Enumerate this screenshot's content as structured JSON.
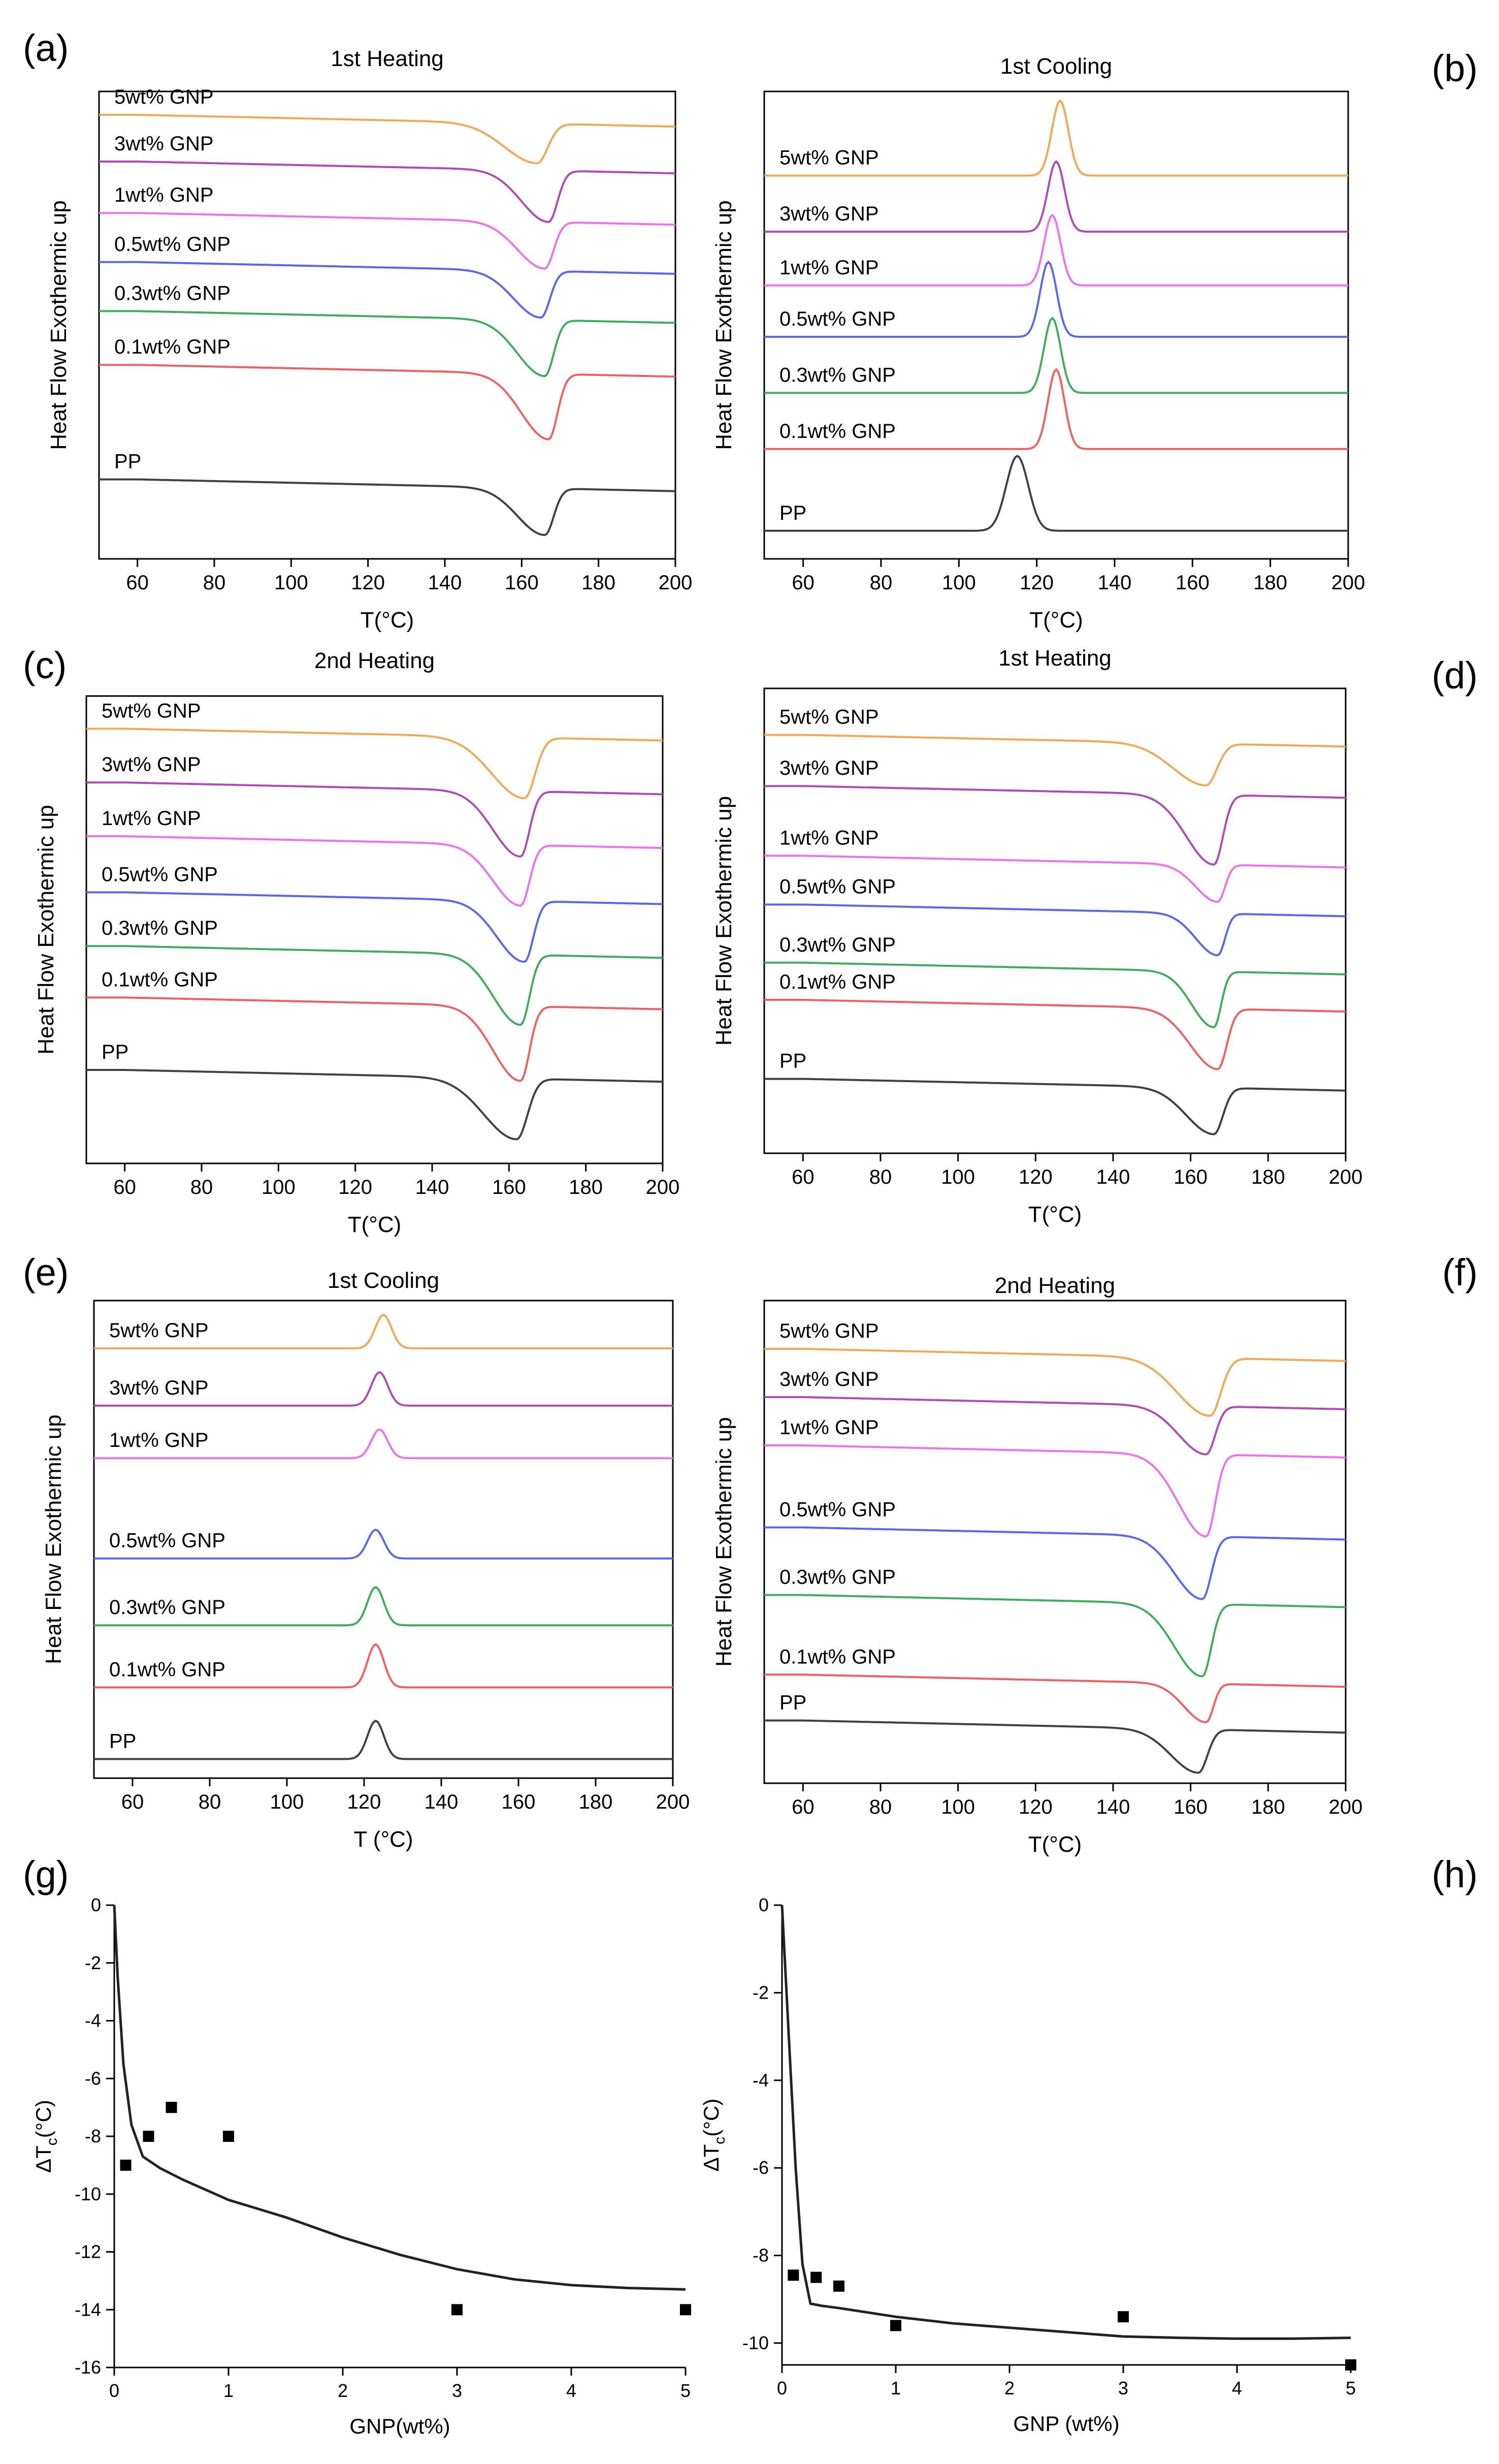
{
  "colors": {
    "PP": "#404040",
    "0.1wt% GNP": "#f06060",
    "0.3wt% GNP": "#3daf5a",
    "0.5wt% GNP": "#5a66ee",
    "1wt% GNP": "#f070f0",
    "3wt% GNP": "#b04ab6",
    "5wt% GNP": "#f5a854",
    "fit": "#222222",
    "axis": "#000000"
  },
  "chart_data": [
    {
      "id": "a",
      "panel_label": "(a)",
      "type": "line",
      "title": "1st Heating",
      "xlabel": "T(°C)",
      "ylabel": "Heat Flow Exothermic up",
      "xlim": [
        50,
        200
      ],
      "xticks": [
        "60",
        "80",
        "100",
        "120",
        "140",
        "160",
        "180",
        "200"
      ],
      "peak": "endo",
      "series": [
        {
          "name": "5wt% GNP",
          "label": "5wt% GNP",
          "baseline": 0.95,
          "peak_T": 164,
          "depth": 0.085,
          "width": 6
        },
        {
          "name": "3wt% GNP",
          "label": "3wt% GNP",
          "baseline": 0.85,
          "peak_T": 167,
          "depth": 0.11,
          "width": 5
        },
        {
          "name": "1wt% GNP",
          "label": "1wt% GNP",
          "baseline": 0.74,
          "peak_T": 166,
          "depth": 0.1,
          "width": 5
        },
        {
          "name": "0.5wt% GNP",
          "label": "0.5wt% GNP",
          "baseline": 0.635,
          "peak_T": 165,
          "depth": 0.1,
          "width": 5
        },
        {
          "name": "0.3wt% GNP",
          "label": "0.3wt% GNP",
          "baseline": 0.53,
          "peak_T": 166,
          "depth": 0.12,
          "width": 5
        },
        {
          "name": "0.1wt% GNP",
          "label": "0.1wt% GNP",
          "baseline": 0.415,
          "peak_T": 167,
          "depth": 0.14,
          "width": 5
        },
        {
          "name": "PP",
          "label": "PP",
          "baseline": 0.17,
          "peak_T": 166,
          "depth": 0.1,
          "width": 5
        }
      ]
    },
    {
      "id": "b",
      "panel_label": "(b)",
      "type": "line",
      "title": "1st Cooling",
      "xlabel": "T(°C)",
      "ylabel": "Heat Flow Exothermic up",
      "xlim": [
        50,
        200
      ],
      "xticks": [
        "60",
        "80",
        "100",
        "120",
        "140",
        "160",
        "180",
        "200"
      ],
      "peak": "exo",
      "series": [
        {
          "name": "5wt% GNP",
          "label": "5wt% GNP",
          "baseline": 0.82,
          "peak_T": 126,
          "depth": 0.16,
          "width": 3
        },
        {
          "name": "3wt% GNP",
          "label": "3wt% GNP",
          "baseline": 0.7,
          "peak_T": 125,
          "depth": 0.15,
          "width": 3
        },
        {
          "name": "1wt% GNP",
          "label": "1wt% GNP",
          "baseline": 0.585,
          "peak_T": 124,
          "depth": 0.15,
          "width": 3
        },
        {
          "name": "0.5wt% GNP",
          "label": "0.5wt% GNP",
          "baseline": 0.475,
          "peak_T": 123,
          "depth": 0.16,
          "width": 3
        },
        {
          "name": "0.3wt% GNP",
          "label": "0.3wt% GNP",
          "baseline": 0.355,
          "peak_T": 124,
          "depth": 0.16,
          "width": 3
        },
        {
          "name": "0.1wt% GNP",
          "label": "0.1wt% GNP",
          "baseline": 0.235,
          "peak_T": 125,
          "depth": 0.17,
          "width": 3
        },
        {
          "name": "PP",
          "label": "PP",
          "baseline": 0.06,
          "peak_T": 115,
          "depth": 0.16,
          "width": 4
        }
      ]
    },
    {
      "id": "c",
      "panel_label": "(c)",
      "type": "line",
      "title": "2nd Heating",
      "xlabel": "T(°C)",
      "ylabel": "Heat Flow Exothermic up",
      "xlim": [
        50,
        200
      ],
      "xticks": [
        "60",
        "80",
        "100",
        "120",
        "140",
        "160",
        "180",
        "200"
      ],
      "peak": "endo",
      "series": [
        {
          "name": "5wt% GNP",
          "label": "5wt% GNP",
          "baseline": 0.93,
          "peak_T": 164,
          "depth": 0.13,
          "width": 6
        },
        {
          "name": "3wt% GNP",
          "label": "3wt% GNP",
          "baseline": 0.815,
          "peak_T": 163,
          "depth": 0.14,
          "width": 5
        },
        {
          "name": "1wt% GNP",
          "label": "1wt% GNP",
          "baseline": 0.7,
          "peak_T": 163,
          "depth": 0.13,
          "width": 5
        },
        {
          "name": "0.5wt% GNP",
          "label": "0.5wt% GNP",
          "baseline": 0.58,
          "peak_T": 164,
          "depth": 0.13,
          "width": 5
        },
        {
          "name": "0.3wt% GNP",
          "label": "0.3wt% GNP",
          "baseline": 0.465,
          "peak_T": 163,
          "depth": 0.15,
          "width": 5
        },
        {
          "name": "0.1wt% GNP",
          "label": "0.1wt% GNP",
          "baseline": 0.355,
          "peak_T": 163,
          "depth": 0.16,
          "width": 5
        },
        {
          "name": "PP",
          "label": "PP",
          "baseline": 0.2,
          "peak_T": 162,
          "depth": 0.13,
          "width": 6
        }
      ]
    },
    {
      "id": "d",
      "panel_label": "(d)",
      "type": "line",
      "title": "1st Heating",
      "xlabel": "T(°C)",
      "ylabel": "Heat Flow Exothermic up",
      "xlim": [
        50,
        200
      ],
      "xticks": [
        "60",
        "80",
        "100",
        "120",
        "140",
        "160",
        "180",
        "200"
      ],
      "peak": "endo",
      "series": [
        {
          "name": "5wt% GNP",
          "label": "5wt% GNP",
          "baseline": 0.9,
          "peak_T": 164,
          "depth": 0.09,
          "width": 6
        },
        {
          "name": "3wt% GNP",
          "label": "3wt% GNP",
          "baseline": 0.79,
          "peak_T": 166,
          "depth": 0.15,
          "width": 5
        },
        {
          "name": "1wt% GNP",
          "label": "1wt% GNP",
          "baseline": 0.64,
          "peak_T": 167,
          "depth": 0.08,
          "width": 4
        },
        {
          "name": "0.5wt% GNP",
          "label": "0.5wt% GNP",
          "baseline": 0.535,
          "peak_T": 167,
          "depth": 0.09,
          "width": 4
        },
        {
          "name": "0.3wt% GNP",
          "label": "0.3wt% GNP",
          "baseline": 0.41,
          "peak_T": 166,
          "depth": 0.12,
          "width": 4
        },
        {
          "name": "0.1wt% GNP",
          "label": "0.1wt% GNP",
          "baseline": 0.33,
          "peak_T": 167,
          "depth": 0.13,
          "width": 5
        },
        {
          "name": "PP",
          "label": "PP",
          "baseline": 0.16,
          "peak_T": 166,
          "depth": 0.1,
          "width": 5
        }
      ]
    },
    {
      "id": "e",
      "panel_label": "(e)",
      "type": "line",
      "title": "1st Cooling",
      "xlabel": "T (°C)",
      "ylabel": "Heat Flow Exothermic up",
      "xlim": [
        50,
        200
      ],
      "xticks": [
        "60",
        "80",
        "100",
        "120",
        "140",
        "160",
        "180",
        "200"
      ],
      "peak": "exo",
      "series": [
        {
          "name": "5wt% GNP",
          "label": "5wt% GNP",
          "baseline": 0.9,
          "peak_T": 125,
          "depth": 0.07,
          "width": 3
        },
        {
          "name": "3wt% GNP",
          "label": "3wt% GNP",
          "baseline": 0.78,
          "peak_T": 124,
          "depth": 0.07,
          "width": 3
        },
        {
          "name": "1wt% GNP",
          "label": "1wt% GNP",
          "baseline": 0.67,
          "peak_T": 124,
          "depth": 0.06,
          "width": 3
        },
        {
          "name": "0.5wt% GNP",
          "label": "0.5wt% GNP",
          "baseline": 0.46,
          "peak_T": 123,
          "depth": 0.06,
          "width": 3
        },
        {
          "name": "0.3wt% GNP",
          "label": "0.3wt% GNP",
          "baseline": 0.32,
          "peak_T": 123,
          "depth": 0.08,
          "width": 3
        },
        {
          "name": "0.1wt% GNP",
          "label": "0.1wt% GNP",
          "baseline": 0.19,
          "peak_T": 123,
          "depth": 0.09,
          "width": 3
        },
        {
          "name": "PP",
          "label": "PP",
          "baseline": 0.04,
          "peak_T": 123,
          "depth": 0.08,
          "width": 3
        }
      ]
    },
    {
      "id": "f",
      "panel_label": "(f)",
      "type": "line",
      "title": "2nd Heating",
      "xlabel": "T(°C)",
      "ylabel": "Heat Flow Exothermic up",
      "xlim": [
        50,
        200
      ],
      "xticks": [
        "60",
        "80",
        "100",
        "120",
        "140",
        "160",
        "180",
        "200"
      ],
      "peak": "endo",
      "series": [
        {
          "name": "5wt% GNP",
          "label": "5wt% GNP",
          "baseline": 0.9,
          "peak_T": 165,
          "depth": 0.12,
          "width": 6
        },
        {
          "name": "3wt% GNP",
          "label": "3wt% GNP",
          "baseline": 0.8,
          "peak_T": 164,
          "depth": 0.1,
          "width": 5
        },
        {
          "name": "1wt% GNP",
          "label": "1wt% GNP",
          "baseline": 0.7,
          "peak_T": 164,
          "depth": 0.17,
          "width": 5
        },
        {
          "name": "0.5wt% GNP",
          "label": "0.5wt% GNP",
          "baseline": 0.53,
          "peak_T": 163,
          "depth": 0.13,
          "width": 5
        },
        {
          "name": "0.3wt% GNP",
          "label": "0.3wt% GNP",
          "baseline": 0.39,
          "peak_T": 163,
          "depth": 0.15,
          "width": 5
        },
        {
          "name": "0.1wt% GNP",
          "label": "0.1wt% GNP",
          "baseline": 0.225,
          "peak_T": 164,
          "depth": 0.08,
          "width": 4
        },
        {
          "name": "PP",
          "label": "PP",
          "baseline": 0.13,
          "peak_T": 162,
          "depth": 0.09,
          "width": 5
        }
      ]
    },
    {
      "id": "g",
      "panel_label": "(g)",
      "type": "scatter",
      "xlabel": "GNP(wt%)",
      "ylabel": "ΔT",
      "xlim": [
        0,
        5
      ],
      "ylim": [
        -16,
        0
      ],
      "xticks": [
        "0",
        "1",
        "2",
        "3",
        "4",
        "5"
      ],
      "yticks": [
        "0",
        "-2",
        "-4",
        "-6",
        "-8",
        "-10",
        "-12",
        "-14",
        "-16"
      ],
      "points": [
        [
          0.1,
          -9
        ],
        [
          0.3,
          -8
        ],
        [
          0.5,
          -7
        ],
        [
          1,
          -8
        ],
        [
          3,
          -14
        ],
        [
          5,
          -14
        ]
      ],
      "fit": [
        [
          0,
          0
        ],
        [
          0.03,
          -2.5
        ],
        [
          0.08,
          -5.5
        ],
        [
          0.15,
          -7.6
        ],
        [
          0.25,
          -8.7
        ],
        [
          0.4,
          -9.1
        ],
        [
          0.6,
          -9.5
        ],
        [
          1,
          -10.2
        ],
        [
          1.5,
          -10.8
        ],
        [
          2,
          -11.5
        ],
        [
          2.5,
          -12.1
        ],
        [
          3,
          -12.6
        ],
        [
          3.5,
          -12.95
        ],
        [
          4,
          -13.15
        ],
        [
          4.5,
          -13.25
        ],
        [
          5,
          -13.3
        ]
      ]
    },
    {
      "id": "h",
      "panel_label": "(h)",
      "type": "scatter",
      "xlabel": "GNP (wt%)",
      "ylabel": "ΔT",
      "xlim": [
        0,
        5
      ],
      "ylim": [
        -10.5,
        0
      ],
      "xticks": [
        "0",
        "1",
        "2",
        "3",
        "4",
        "5"
      ],
      "yticks": [
        "0",
        "-2",
        "-4",
        "-6",
        "-8",
        "-10"
      ],
      "points": [
        [
          0.1,
          -8.45
        ],
        [
          0.3,
          -8.5
        ],
        [
          0.5,
          -8.7
        ],
        [
          1,
          -9.6
        ],
        [
          3,
          -9.4
        ],
        [
          5,
          -10.5
        ]
      ],
      "fit": [
        [
          0,
          0
        ],
        [
          0.06,
          -3
        ],
        [
          0.12,
          -6
        ],
        [
          0.18,
          -8.2
        ],
        [
          0.25,
          -9.1
        ],
        [
          0.35,
          -9.15
        ],
        [
          0.5,
          -9.2
        ],
        [
          1,
          -9.4
        ],
        [
          1.5,
          -9.55
        ],
        [
          2,
          -9.65
        ],
        [
          2.5,
          -9.75
        ],
        [
          3,
          -9.85
        ],
        [
          3.5,
          -9.88
        ],
        [
          4,
          -9.9
        ],
        [
          4.5,
          -9.9
        ],
        [
          5,
          -9.88
        ]
      ]
    }
  ]
}
